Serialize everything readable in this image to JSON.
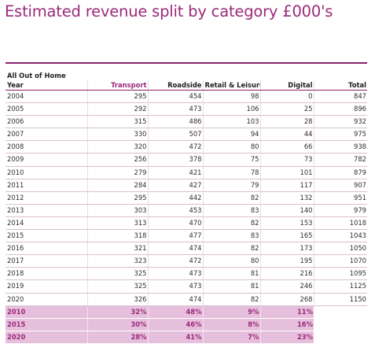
{
  "title": "Estimated revenue split by category £000's",
  "group_label": "All Out of Home",
  "columns": [
    "Year",
    "Transport",
    "Roadside",
    "Retail & Leisure",
    "Digital",
    "Total"
  ],
  "rows": [
    [
      "2004",
      "295",
      "454",
      "98",
      "0",
      "847"
    ],
    [
      "2005",
      "292",
      "473",
      "106",
      "25",
      "896"
    ],
    [
      "2006",
      "315",
      "486",
      "103",
      "28",
      "932"
    ],
    [
      "2007",
      "330",
      "507",
      "94",
      "44",
      "975"
    ],
    [
      "2008",
      "320",
      "472",
      "80",
      "66",
      "938"
    ],
    [
      "2009",
      "256",
      "378",
      "75",
      "73",
      "782"
    ],
    [
      "2010",
      "279",
      "421",
      "78",
      "101",
      "879"
    ],
    [
      "2011",
      "284",
      "427",
      "79",
      "117",
      "907"
    ],
    [
      "2012",
      "295",
      "442",
      "82",
      "132",
      "951"
    ],
    [
      "2013",
      "303",
      "453",
      "83",
      "140",
      "979"
    ],
    [
      "2014",
      "313",
      "470",
      "82",
      "153",
      "1018"
    ],
    [
      "2015",
      "318",
      "477",
      "83",
      "165",
      "1043"
    ],
    [
      "2016",
      "321",
      "474",
      "82",
      "173",
      "1050"
    ],
    [
      "2017",
      "323",
      "472",
      "80",
      "195",
      "1070"
    ],
    [
      "2018",
      "325",
      "473",
      "81",
      "216",
      "1095"
    ],
    [
      "2019",
      "325",
      "473",
      "81",
      "246",
      "1125"
    ],
    [
      "2020",
      "326",
      "474",
      "82",
      "268",
      "1150"
    ]
  ],
  "share_rows": [
    [
      "2010",
      "32%",
      "48%",
      "9%",
      "11%",
      ""
    ],
    [
      "2015",
      "30%",
      "46%",
      "8%",
      "16%",
      ""
    ],
    [
      "2020",
      "28%",
      "41%",
      "7%",
      "23%",
      ""
    ]
  ],
  "colors": {
    "accent": "#9b2a7a",
    "rule": "#8a1f6c",
    "highlight_bg": "#e6bfdc"
  }
}
